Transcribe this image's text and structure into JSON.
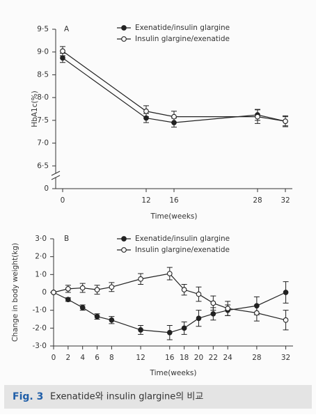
{
  "chart_data": [
    {
      "type": "line",
      "panel": "A",
      "ylabel": "HbA1c(%)",
      "xlabel": "Time(weeks)",
      "x": [
        0,
        12,
        16,
        28,
        32
      ],
      "series": [
        {
          "name": "Exenatide/insulin glargine",
          "color": "#222222",
          "marker": "filled",
          "values": [
            8.87,
            7.55,
            7.45,
            7.62,
            7.48
          ],
          "errors": [
            0.1,
            0.1,
            0.1,
            0.12,
            0.1
          ]
        },
        {
          "name": "Insulin glargine/exenatide",
          "color": "#222222",
          "marker": "open",
          "values": [
            9.02,
            7.7,
            7.58,
            7.58,
            7.48
          ],
          "errors": [
            0.1,
            0.12,
            0.12,
            0.15,
            0.12
          ]
        }
      ],
      "xlim": [
        -1,
        33
      ],
      "xticks": [
        0,
        12,
        16,
        28,
        32
      ],
      "ylim": [
        6.0,
        9.5
      ],
      "axis_break": true,
      "yticks": [
        0,
        {
          "value": 6.5,
          "label": "6·5"
        },
        {
          "value": 7.0,
          "label": "7·0"
        },
        {
          "value": 7.5,
          "label": "7·5"
        },
        {
          "value": 8.0,
          "label": "8·0"
        },
        {
          "value": 8.5,
          "label": "8·5"
        },
        {
          "value": 9.0,
          "label": "9·0"
        },
        {
          "value": 9.5,
          "label": "9·5"
        }
      ]
    },
    {
      "type": "line",
      "panel": "B",
      "ylabel": "Change in body weight(kg)",
      "xlabel": "Time(weeks)",
      "x": [
        0,
        2,
        4,
        6,
        8,
        12,
        16,
        18,
        20,
        22,
        24,
        28,
        32
      ],
      "series": [
        {
          "name": "Exenatide/insulin glargine",
          "color": "#222222",
          "marker": "filled",
          "values": [
            0,
            -0.4,
            -0.85,
            -1.35,
            -1.55,
            -2.1,
            -2.25,
            -2.0,
            -1.45,
            -1.2,
            -1.0,
            -0.75,
            0
          ],
          "errors": [
            0,
            0.1,
            0.15,
            0.15,
            0.2,
            0.25,
            0.4,
            0.35,
            0.45,
            0.35,
            0.3,
            0.5,
            0.6
          ]
        },
        {
          "name": "Insulin glargine/exenatide",
          "color": "#222222",
          "marker": "open",
          "values": [
            0,
            0.2,
            0.25,
            0.15,
            0.3,
            0.75,
            1.05,
            0.15,
            -0.1,
            -0.6,
            -0.9,
            -1.15,
            -1.55
          ],
          "errors": [
            0,
            0.2,
            0.25,
            0.25,
            0.25,
            0.3,
            0.35,
            0.3,
            0.4,
            0.4,
            0.4,
            0.45,
            0.55
          ]
        }
      ],
      "xlim": [
        0,
        33
      ],
      "xticks": [
        0,
        2,
        4,
        6,
        8,
        12,
        16,
        18,
        20,
        22,
        24,
        28,
        32
      ],
      "ylim": [
        -3,
        3
      ],
      "axis_break": false,
      "yticks": [
        {
          "value": -3,
          "label": "-3·0"
        },
        {
          "value": -2,
          "label": "-2·0"
        },
        {
          "value": -1,
          "label": "-1·0"
        },
        0,
        {
          "value": 1,
          "label": "1·0"
        },
        {
          "value": 2,
          "label": "2·0"
        },
        {
          "value": 3,
          "label": "3·0"
        }
      ]
    }
  ],
  "caption": {
    "label": "Fig. 3",
    "text": "Exenatide와 insulin glargine의 비교"
  }
}
